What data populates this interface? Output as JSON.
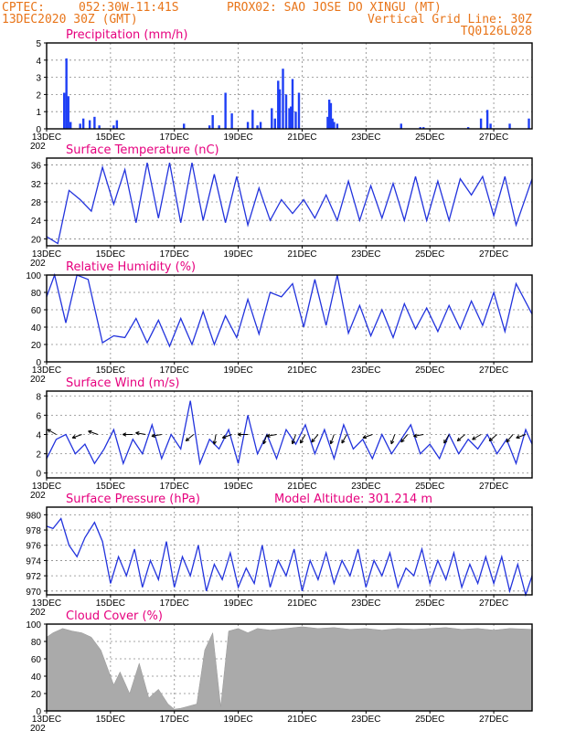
{
  "header": {
    "line1_left": "CPTEC:",
    "line1_coords": "052:30W-11:41S",
    "line1_station": "PROX02: SAO JOSE DO XINGU (MT)",
    "line2_left": "13DEC2020 30Z (GMT)",
    "line2_right": "Vertical Grid Line: 30Z",
    "line3_right": "TQ0126L028"
  },
  "x_axis": {
    "tick_labels": [
      "13DEC",
      "15DEC",
      "17DEC",
      "19DEC",
      "21DEC",
      "23DEC",
      "25DEC",
      "27DEC"
    ],
    "tick_days": [
      0,
      2,
      4,
      6,
      8,
      10,
      12,
      14
    ],
    "range_days": [
      0,
      15.2
    ],
    "year_fragment": "202"
  },
  "chart_data": [
    {
      "type": "bar",
      "title": "Precipitation (mm/h)",
      "ylim": [
        0,
        5
      ],
      "yticks": [
        0,
        1,
        2,
        3,
        4,
        5
      ],
      "color": "#1f3ff5",
      "x_days": [
        0.55,
        0.62,
        0.68,
        0.75,
        1.05,
        1.15,
        1.35,
        1.5,
        1.65,
        2.1,
        2.2,
        4.3,
        5.1,
        5.2,
        5.4,
        5.6,
        5.8,
        6.3,
        6.45,
        6.6,
        6.7,
        7.05,
        7.15,
        7.25,
        7.3,
        7.4,
        7.5,
        7.6,
        7.65,
        7.7,
        7.8,
        7.9,
        8.8,
        8.85,
        8.9,
        8.95,
        9.0,
        9.1,
        11.1,
        11.7,
        11.8,
        13.2,
        13.6,
        13.8,
        13.9,
        14.5,
        15.1
      ],
      "values": [
        2.1,
        4.1,
        1.9,
        0.4,
        0.3,
        0.6,
        0.5,
        0.7,
        0.2,
        0.2,
        0.5,
        0.3,
        0.2,
        0.8,
        0.2,
        2.1,
        0.9,
        0.4,
        1.1,
        0.2,
        0.4,
        1.2,
        0.6,
        2.8,
        2.3,
        3.5,
        2.0,
        1.2,
        1.3,
        2.9,
        1.0,
        2.1,
        0.7,
        1.7,
        1.5,
        0.6,
        0.4,
        0.3,
        0.3,
        0.1,
        0.1,
        0.1,
        0.6,
        1.1,
        0.3,
        0.3,
        0.6
      ]
    },
    {
      "type": "line",
      "title": "Surface Temperature (nC)",
      "ylim": [
        18.5,
        37.5
      ],
      "yticks": [
        20,
        24,
        28,
        32,
        36
      ],
      "color": "#2233dd",
      "x_days": [
        0,
        0.35,
        0.7,
        1.05,
        1.4,
        1.75,
        2.1,
        2.45,
        2.8,
        3.15,
        3.5,
        3.85,
        4.2,
        4.55,
        4.9,
        5.25,
        5.6,
        5.95,
        6.3,
        6.65,
        7.0,
        7.35,
        7.7,
        8.05,
        8.4,
        8.75,
        9.1,
        9.45,
        9.8,
        10.15,
        10.5,
        10.85,
        11.2,
        11.55,
        11.9,
        12.25,
        12.6,
        12.95,
        13.3,
        13.65,
        14.0,
        14.35,
        14.7,
        15.2
      ],
      "values": [
        20.5,
        19.0,
        30.5,
        28.5,
        26.0,
        35.5,
        27.5,
        35.0,
        23.5,
        36.5,
        24.5,
        36.5,
        23.5,
        36.5,
        24.0,
        34.0,
        23.5,
        33.5,
        23.0,
        31.0,
        24.0,
        28.5,
        25.5,
        28.5,
        24.5,
        29.5,
        24.0,
        32.5,
        24.0,
        31.5,
        24.5,
        32.0,
        24.0,
        33.5,
        24.0,
        32.5,
        24.0,
        33.0,
        29.5,
        33.5,
        25.0,
        33.5,
        23.0,
        33.0
      ]
    },
    {
      "type": "line",
      "title": "Relative Humidity (%)",
      "ylim": [
        0,
        100
      ],
      "yticks": [
        0,
        20,
        40,
        60,
        80,
        100
      ],
      "color": "#2233dd",
      "x_days": [
        0,
        0.25,
        0.6,
        0.95,
        1.3,
        1.75,
        2.1,
        2.45,
        2.8,
        3.15,
        3.5,
        3.85,
        4.2,
        4.55,
        4.9,
        5.25,
        5.6,
        5.95,
        6.3,
        6.65,
        7.0,
        7.35,
        7.7,
        8.05,
        8.4,
        8.75,
        9.1,
        9.45,
        9.8,
        10.15,
        10.5,
        10.85,
        11.2,
        11.55,
        11.9,
        12.25,
        12.6,
        12.95,
        13.3,
        13.65,
        14.0,
        14.35,
        14.7,
        15.2
      ],
      "values": [
        75,
        100,
        45,
        100,
        95,
        22,
        30,
        28,
        50,
        22,
        48,
        18,
        50,
        20,
        58,
        20,
        53,
        28,
        72,
        32,
        80,
        75,
        90,
        40,
        95,
        42,
        100,
        33,
        65,
        30,
        60,
        28,
        67,
        38,
        62,
        35,
        65,
        38,
        70,
        42,
        80,
        35,
        90,
        55
      ]
    },
    {
      "type": "line",
      "title": "Surface Wind (m/s)",
      "ylim": [
        -0.5,
        8.5
      ],
      "yticks": [
        0,
        2,
        4,
        6,
        8
      ],
      "color": "#2233dd",
      "x_days": [
        0,
        0.3,
        0.6,
        0.9,
        1.2,
        1.5,
        1.8,
        2.1,
        2.4,
        2.7,
        3.0,
        3.3,
        3.6,
        3.9,
        4.2,
        4.5,
        4.8,
        5.1,
        5.4,
        5.7,
        6.0,
        6.3,
        6.6,
        6.9,
        7.2,
        7.5,
        7.8,
        8.1,
        8.4,
        8.7,
        9.0,
        9.3,
        9.6,
        9.9,
        10.2,
        10.5,
        10.8,
        11.1,
        11.4,
        11.7,
        12.0,
        12.3,
        12.6,
        12.9,
        13.2,
        13.5,
        13.8,
        14.1,
        14.4,
        14.7,
        15.0,
        15.2
      ],
      "values": [
        1.5,
        3.5,
        4.0,
        2.0,
        3.0,
        1.0,
        2.5,
        4.5,
        1.0,
        3.5,
        2.0,
        5.0,
        1.5,
        4.0,
        2.5,
        7.5,
        1.0,
        3.5,
        2.5,
        4.5,
        1.0,
        6.0,
        2.0,
        4.0,
        1.5,
        4.5,
        3.0,
        5.0,
        2.0,
        4.5,
        1.5,
        5.0,
        2.5,
        3.5,
        1.5,
        4.0,
        2.0,
        3.5,
        5.0,
        2.0,
        3.0,
        1.5,
        4.0,
        2.0,
        3.5,
        2.5,
        4.0,
        2.0,
        3.5,
        1.0,
        4.5,
        3.0
      ],
      "vector_x_days": [
        0.3,
        1.1,
        1.6,
        2.7,
        3.1,
        3.6,
        4.6,
        5.3,
        5.8,
        6.3,
        6.9,
        7.2,
        7.8,
        8.1,
        8.5,
        9.0,
        9.4,
        10.2,
        10.9,
        11.3,
        11.8,
        12.6,
        13.1,
        13.6,
        14.1,
        14.6,
        15.0
      ],
      "vector_angle_deg": [
        150,
        200,
        160,
        180,
        170,
        190,
        220,
        260,
        200,
        180,
        250,
        190,
        250,
        240,
        230,
        250,
        240,
        200,
        250,
        230,
        190,
        240,
        220,
        210,
        220,
        230,
        200
      ]
    },
    {
      "type": "line",
      "title": "Surface Pressure (hPa)",
      "annotation": "Model Altitude: 301.214 m",
      "ylim": [
        969.5,
        981
      ],
      "yticks": [
        970,
        972,
        974,
        976,
        978,
        980
      ],
      "color": "#2233dd",
      "x_days": [
        0,
        0.2,
        0.45,
        0.7,
        0.95,
        1.2,
        1.5,
        1.75,
        2.0,
        2.25,
        2.5,
        2.75,
        3.0,
        3.25,
        3.5,
        3.75,
        4.0,
        4.25,
        4.5,
        4.75,
        5.0,
        5.25,
        5.5,
        5.75,
        6.0,
        6.25,
        6.5,
        6.75,
        7.0,
        7.25,
        7.5,
        7.75,
        8.0,
        8.25,
        8.5,
        8.75,
        9.0,
        9.25,
        9.5,
        9.75,
        10.0,
        10.25,
        10.5,
        10.75,
        11.0,
        11.25,
        11.5,
        11.75,
        12.0,
        12.25,
        12.5,
        12.75,
        13.0,
        13.25,
        13.5,
        13.75,
        14.0,
        14.25,
        14.5,
        14.75,
        15.0,
        15.2
      ],
      "values": [
        978.5,
        978.2,
        979.5,
        976.0,
        974.5,
        977.0,
        979.0,
        976.5,
        971.0,
        974.5,
        972.0,
        975.5,
        970.5,
        974.0,
        971.5,
        976.5,
        970.5,
        974.5,
        972.0,
        976.0,
        970.0,
        973.5,
        971.5,
        975.0,
        970.5,
        973.0,
        971.0,
        976.0,
        970.5,
        974.0,
        972.0,
        975.5,
        970.0,
        974.0,
        971.5,
        975.0,
        971.0,
        974.0,
        972.0,
        975.5,
        970.5,
        974.0,
        972.0,
        975.0,
        970.5,
        973.0,
        972.0,
        975.5,
        971.0,
        974.0,
        971.5,
        975.0,
        970.5,
        973.5,
        971.0,
        974.5,
        971.0,
        974.5,
        970.0,
        973.5,
        969.5,
        972.0
      ]
    },
    {
      "type": "area",
      "title": "Cloud Cover (%)",
      "ylim": [
        0,
        100
      ],
      "yticks": [
        0,
        20,
        40,
        60,
        80,
        100
      ],
      "color": "#aaaaaa",
      "x_days": [
        0,
        0.2,
        0.5,
        0.8,
        1.1,
        1.4,
        1.7,
        1.9,
        2.1,
        2.3,
        2.6,
        2.9,
        3.2,
        3.5,
        3.8,
        4.0,
        4.2,
        4.4,
        4.7,
        4.95,
        5.2,
        5.45,
        5.7,
        6.0,
        6.3,
        6.6,
        7.0,
        7.5,
        8.0,
        8.5,
        9.0,
        9.5,
        10.0,
        10.5,
        11.0,
        11.5,
        12.0,
        12.5,
        13.0,
        13.5,
        14.0,
        14.5,
        15.2
      ],
      "values": [
        85,
        90,
        95,
        92,
        90,
        85,
        70,
        50,
        30,
        45,
        20,
        55,
        15,
        25,
        8,
        2,
        3,
        5,
        8,
        70,
        90,
        5,
        92,
        95,
        90,
        95,
        93,
        95,
        97,
        95,
        96,
        94,
        95,
        93,
        95,
        94,
        95,
        96,
        94,
        95,
        93,
        95,
        94
      ]
    }
  ]
}
